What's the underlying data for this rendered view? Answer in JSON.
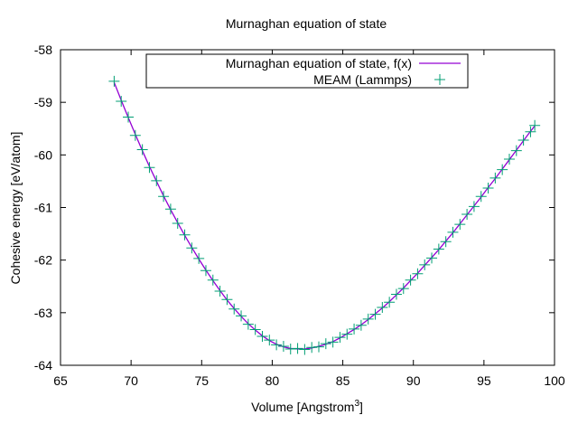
{
  "chart_data": {
    "type": "line",
    "title": "Murnaghan equation of state",
    "xlabel": "Volume [Angstrom",
    "xlabel_sup": "3",
    "xlabel_suffix": "]",
    "ylabel": "Cohesive energy [eV/atom]",
    "xlim": [
      65,
      100
    ],
    "ylim": [
      -64,
      -58
    ],
    "xticks": [
      65,
      70,
      75,
      80,
      85,
      90,
      95,
      100
    ],
    "yticks": [
      -58,
      -59,
      -60,
      -61,
      -62,
      -63,
      -64
    ],
    "grid": false,
    "legend_position": "top-right",
    "series": [
      {
        "name": "Murnaghan equation of state, f(x)",
        "style": "line",
        "color": "#9400d3",
        "x": [
          68.8,
          69.3,
          69.8,
          70.3,
          70.8,
          71.3,
          71.8,
          72.3,
          72.8,
          73.3,
          73.8,
          74.3,
          74.8,
          75.3,
          75.8,
          76.3,
          76.8,
          77.3,
          77.8,
          78.3,
          78.8,
          79.3,
          79.8,
          80.3,
          80.8,
          81.3,
          81.8,
          82.3,
          82.8,
          83.3,
          83.8,
          84.3,
          84.8,
          85.3,
          85.8,
          86.3,
          86.8,
          87.3,
          87.8,
          88.3,
          88.8,
          89.3,
          89.8,
          90.3,
          90.8,
          91.3,
          91.8,
          92.3,
          92.8,
          93.3,
          93.8,
          94.3,
          94.8,
          95.3,
          95.8,
          96.3,
          96.8,
          97.3,
          97.8,
          98.3,
          98.6
        ],
        "y": [
          -58.62,
          -58.96,
          -59.29,
          -59.61,
          -59.92,
          -60.22,
          -60.5,
          -60.78,
          -61.04,
          -61.29,
          -61.53,
          -61.76,
          -61.98,
          -62.19,
          -62.39,
          -62.58,
          -62.76,
          -62.92,
          -63.07,
          -63.21,
          -63.33,
          -63.44,
          -63.53,
          -63.6,
          -63.65,
          -63.68,
          -63.69,
          -63.69,
          -63.67,
          -63.64,
          -63.6,
          -63.55,
          -63.48,
          -63.4,
          -63.32,
          -63.23,
          -63.13,
          -63.02,
          -62.91,
          -62.79,
          -62.66,
          -62.53,
          -62.39,
          -62.25,
          -62.1,
          -61.95,
          -61.8,
          -61.64,
          -61.48,
          -61.31,
          -61.14,
          -60.97,
          -60.8,
          -60.62,
          -60.45,
          -60.27,
          -60.09,
          -59.91,
          -59.73,
          -59.55,
          -59.45
        ]
      },
      {
        "name": "MEAM (Lammps)",
        "style": "points",
        "marker": "+",
        "color": "#009e73",
        "x": [
          68.8,
          69.3,
          69.8,
          70.3,
          70.8,
          71.3,
          71.8,
          72.3,
          72.8,
          73.3,
          73.8,
          74.3,
          74.8,
          75.3,
          75.8,
          76.3,
          76.8,
          77.3,
          77.8,
          78.3,
          78.8,
          79.3,
          79.8,
          80.3,
          80.8,
          81.3,
          81.8,
          82.3,
          82.8,
          83.3,
          83.8,
          84.3,
          84.8,
          85.3,
          85.8,
          86.3,
          86.8,
          87.3,
          87.8,
          88.3,
          88.8,
          89.3,
          89.8,
          90.3,
          90.8,
          91.3,
          91.8,
          92.3,
          92.8,
          93.3,
          93.8,
          94.3,
          94.8,
          95.3,
          95.8,
          96.3,
          96.8,
          97.3,
          97.8,
          98.3,
          98.6
        ],
        "y": [
          -58.6,
          -58.98,
          -59.28,
          -59.63,
          -59.9,
          -60.24,
          -60.49,
          -60.79,
          -61.03,
          -61.3,
          -61.52,
          -61.77,
          -61.97,
          -62.2,
          -62.38,
          -62.59,
          -62.75,
          -62.93,
          -63.06,
          -63.22,
          -63.32,
          -63.45,
          -63.52,
          -63.61,
          -63.64,
          -63.69,
          -63.68,
          -63.7,
          -63.66,
          -63.65,
          -63.59,
          -63.56,
          -63.47,
          -63.41,
          -63.31,
          -63.24,
          -63.12,
          -63.03,
          -62.9,
          -62.8,
          -62.65,
          -62.54,
          -62.38,
          -62.26,
          -62.09,
          -61.96,
          -61.79,
          -61.65,
          -61.47,
          -61.32,
          -61.13,
          -60.98,
          -60.79,
          -60.63,
          -60.44,
          -60.28,
          -60.08,
          -59.92,
          -59.72,
          -59.56,
          -59.44
        ]
      }
    ]
  }
}
